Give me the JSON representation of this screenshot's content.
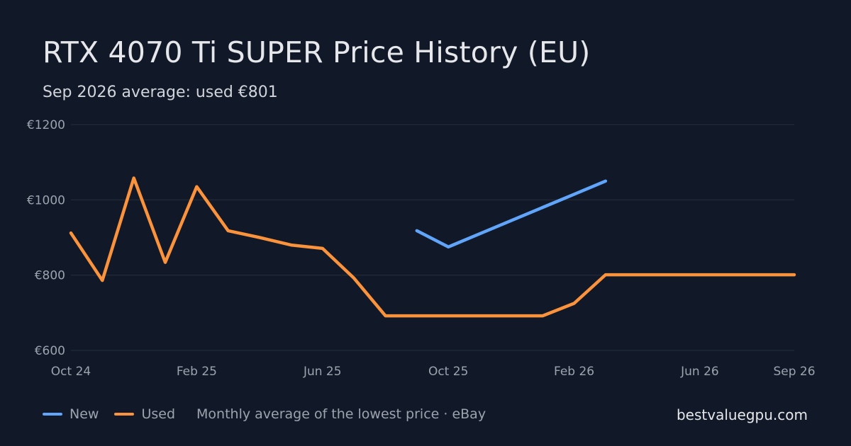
{
  "header": {
    "title": "RTX 4070 Ti SUPER Price History (EU)",
    "subtitle": "Sep 2026 average: used €801"
  },
  "legend": {
    "new_label": "New",
    "used_label": "Used",
    "note": "Monthly average of the lowest price · eBay"
  },
  "brand": "bestvaluegpu.com",
  "colors": {
    "background": "#111827",
    "new": "#60a5fa",
    "used": "#fb923c",
    "grid": "#1f2937"
  },
  "chart_data": {
    "type": "line",
    "title": "RTX 4070 Ti SUPER Price History (EU)",
    "subtitle": "Sep 2026 average: used €801",
    "x_range": [
      "2024-10",
      "2026-09"
    ],
    "ylim": [
      600,
      1200
    ],
    "y_ticks": [
      {
        "value": 1200,
        "label": "€1200"
      },
      {
        "value": 1000,
        "label": "€1000"
      },
      {
        "value": 800,
        "label": "€800"
      },
      {
        "value": 600,
        "label": "€600"
      }
    ],
    "x_ticks": [
      {
        "x": "2024-10",
        "label": "Oct 24"
      },
      {
        "x": "2025-02",
        "label": "Feb 25"
      },
      {
        "x": "2025-06",
        "label": "Jun 25"
      },
      {
        "x": "2025-10",
        "label": "Oct 25"
      },
      {
        "x": "2026-02",
        "label": "Feb 26"
      },
      {
        "x": "2026-06",
        "label": "Jun 26"
      },
      {
        "x": "2026-09",
        "label": "Sep 26"
      }
    ],
    "grid": "horizontal",
    "legend_position": "bottom-left",
    "series": [
      {
        "name": "New",
        "color": "#60a5fa",
        "points": [
          {
            "x": "2025-09",
            "y": 918
          },
          {
            "x": "2025-10",
            "y": 875
          },
          {
            "x": "2025-11",
            "y": 910
          },
          {
            "x": "2025-12",
            "y": 945
          },
          {
            "x": "2026-01",
            "y": 980
          },
          {
            "x": "2026-02",
            "y": 1015
          },
          {
            "x": "2026-03",
            "y": 1050
          }
        ]
      },
      {
        "name": "Used",
        "color": "#fb923c",
        "points": [
          {
            "x": "2024-10",
            "y": 912
          },
          {
            "x": "2024-11",
            "y": 786
          },
          {
            "x": "2024-12",
            "y": 1058
          },
          {
            "x": "2025-01",
            "y": 834
          },
          {
            "x": "2025-02",
            "y": 1035
          },
          {
            "x": "2025-03",
            "y": 918
          },
          {
            "x": "2025-04",
            "y": 900
          },
          {
            "x": "2025-05",
            "y": 880
          },
          {
            "x": "2025-06",
            "y": 871
          },
          {
            "x": "2025-07",
            "y": 792
          },
          {
            "x": "2025-08",
            "y": 692
          },
          {
            "x": "2025-09",
            "y": 692
          },
          {
            "x": "2025-10",
            "y": 692
          },
          {
            "x": "2025-11",
            "y": 692
          },
          {
            "x": "2025-12",
            "y": 692
          },
          {
            "x": "2026-01",
            "y": 692
          },
          {
            "x": "2026-02",
            "y": 725
          },
          {
            "x": "2026-03",
            "y": 801
          },
          {
            "x": "2026-04",
            "y": 801
          },
          {
            "x": "2026-05",
            "y": 801
          },
          {
            "x": "2026-06",
            "y": 801
          },
          {
            "x": "2026-07",
            "y": 801
          },
          {
            "x": "2026-08",
            "y": 801
          },
          {
            "x": "2026-09",
            "y": 801
          }
        ]
      }
    ]
  }
}
